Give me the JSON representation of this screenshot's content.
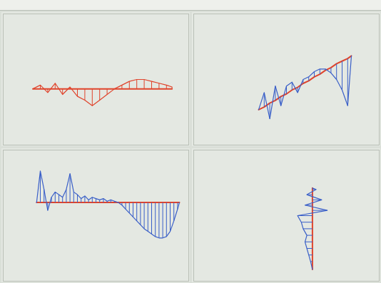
{
  "chart_data": [
    {
      "type": "line",
      "tick_labels": false,
      "xlim": [
        0,
        100
      ],
      "ylim": [
        -30,
        40
      ],
      "x": [
        16,
        20,
        24,
        28,
        32,
        36,
        40,
        44,
        48,
        52,
        56,
        60,
        64,
        68,
        72,
        76,
        80,
        84,
        88,
        91
      ],
      "series": [
        {
          "color": "#e0442c",
          "values": [
            0,
            0,
            0,
            0,
            0,
            0,
            0,
            0,
            0,
            0,
            0,
            0,
            0,
            0,
            0,
            0,
            0,
            0,
            0,
            0
          ]
        },
        {
          "color": "#e0442c",
          "values": [
            0,
            2,
            -2,
            3,
            -3,
            1,
            -4,
            -6,
            -9,
            -6,
            -3,
            0,
            2,
            4,
            5,
            5,
            4,
            3,
            2,
            1
          ]
        }
      ]
    },
    {
      "type": "line",
      "tick_labels": false,
      "xlim": [
        0,
        100
      ],
      "ylim": [
        0,
        100
      ],
      "x": [
        35,
        38,
        41,
        44,
        47,
        50,
        53,
        56,
        59,
        62,
        65,
        68,
        71,
        74,
        77,
        80,
        83,
        85
      ],
      "series": [
        {
          "color": "#e0442c",
          "values": [
            27,
            29,
            32,
            34,
            37,
            39,
            42,
            44,
            47,
            49,
            52,
            54,
            57,
            59,
            62,
            64,
            66,
            68
          ]
        },
        {
          "color": "#3a5fc8",
          "values": [
            27,
            40,
            20,
            45,
            30,
            45,
            48,
            40,
            50,
            52,
            56,
            58,
            58,
            55,
            50,
            42,
            30,
            68
          ]
        }
      ]
    },
    {
      "type": "line",
      "tick_labels": false,
      "xlim": [
        0,
        100
      ],
      "ylim": [
        -60,
        40
      ],
      "x": [
        18,
        20,
        22,
        24,
        26,
        28,
        30,
        32,
        34,
        36,
        38,
        40,
        42,
        44,
        46,
        48,
        50,
        52,
        54,
        56,
        58,
        60,
        62,
        64,
        66,
        68,
        70,
        72,
        74,
        76,
        78,
        80,
        82,
        84,
        86,
        88,
        90,
        92,
        94,
        95
      ],
      "series": [
        {
          "color": "#e0442c",
          "values": [
            0,
            0,
            0,
            0,
            0,
            0,
            0,
            0,
            0,
            0,
            0,
            0,
            0,
            0,
            0,
            0,
            0,
            0,
            0,
            0,
            0,
            0,
            0,
            0,
            0,
            0,
            0,
            0,
            0,
            0,
            0,
            0,
            0,
            0,
            0,
            0,
            0,
            0,
            0,
            0
          ]
        },
        {
          "color": "#3a5fc8",
          "values": [
            0,
            24,
            10,
            -6,
            4,
            8,
            6,
            4,
            10,
            22,
            8,
            6,
            3,
            5,
            2,
            4,
            3,
            2,
            3,
            1,
            2,
            1,
            0,
            -2,
            -5,
            -8,
            -11,
            -14,
            -17,
            -20,
            -22,
            -24,
            -26,
            -27,
            -27,
            -26,
            -22,
            -14,
            -5,
            0
          ]
        }
      ]
    },
    {
      "type": "line",
      "orientation": "horizontal",
      "tick_labels": false,
      "xlim": [
        -64,
        36
      ],
      "ylim": [
        0,
        100
      ],
      "x": [
        9,
        15,
        20,
        25,
        30,
        35,
        40,
        45,
        50,
        54,
        58,
        62,
        66,
        70,
        71
      ],
      "series": [
        {
          "color": "#e0442c",
          "values": [
            0,
            0,
            0,
            0,
            0,
            0,
            0,
            0,
            0,
            0,
            0,
            0,
            0,
            0,
            0
          ]
        },
        {
          "color": "#3a5fc8",
          "values": [
            0,
            -1,
            -2,
            -3,
            -4,
            -3,
            -5,
            -6,
            -8,
            8,
            -4,
            5,
            -3,
            2,
            0
          ]
        }
      ]
    }
  ]
}
